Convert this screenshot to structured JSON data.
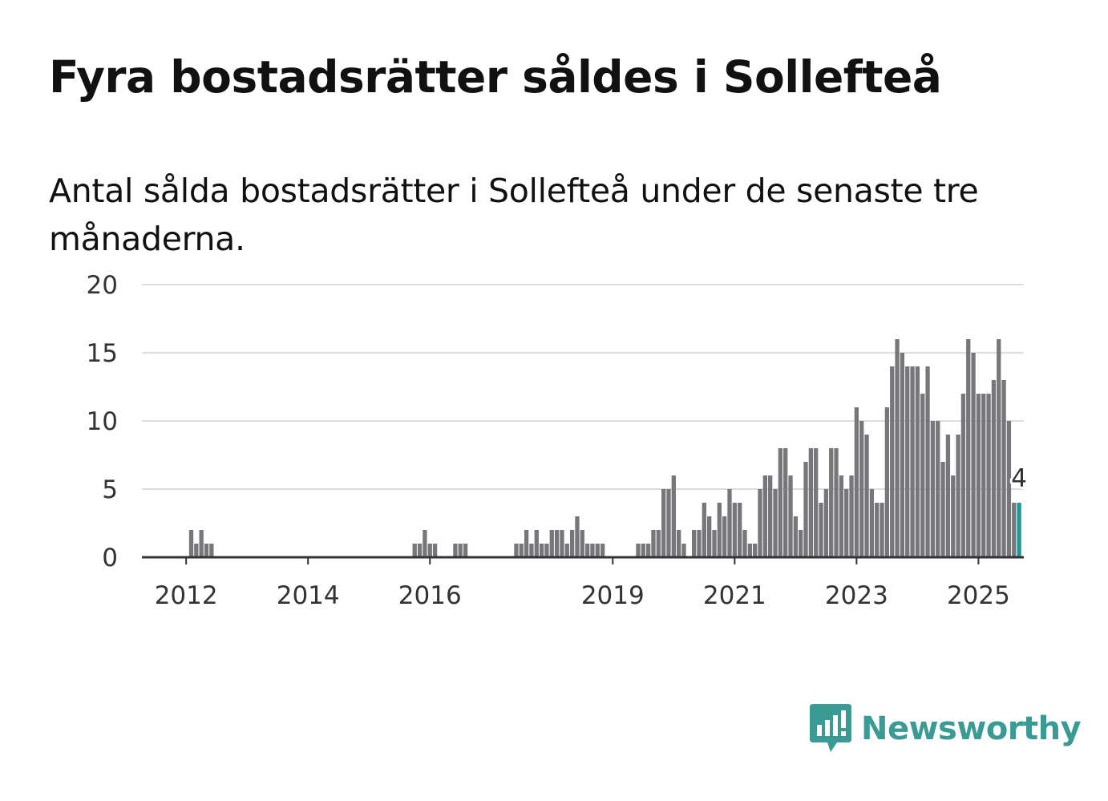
{
  "title": "Fyra bostadsrätter såldes i Sollefteå",
  "subtitle": "Antal sålda bostadsrätter i Sollefteå under de senaste tre månaderna.",
  "brand": {
    "name": "Newsworthy",
    "color": "#3a9b94",
    "icon": "newsworthy-bar-chart-icon"
  },
  "chart_data": {
    "type": "bar",
    "start": "2011-10",
    "ylim": [
      0,
      20
    ],
    "yticks": [
      0,
      5,
      10,
      15,
      20
    ],
    "xticks": [
      "2012",
      "2014",
      "2016",
      "2019",
      "2021",
      "2023",
      "2025"
    ],
    "bar_color": "#77767b",
    "highlight_color": "#1a9a96",
    "grid": true,
    "highlight_label": "4",
    "values": [
      0,
      0,
      0,
      0,
      2,
      1,
      2,
      1,
      1,
      0,
      0,
      0,
      0,
      0,
      0,
      0,
      0,
      0,
      0,
      0,
      0,
      0,
      0,
      0,
      0,
      0,
      0,
      0,
      0,
      0,
      0,
      0,
      0,
      0,
      0,
      0,
      0,
      0,
      0,
      0,
      0,
      0,
      0,
      0,
      0,
      0,
      0,
      0,
      1,
      1,
      2,
      1,
      1,
      0,
      0,
      0,
      1,
      1,
      1,
      0,
      0,
      0,
      0,
      0,
      0,
      0,
      0,
      0,
      1,
      1,
      2,
      1,
      2,
      1,
      1,
      2,
      2,
      2,
      1,
      2,
      3,
      2,
      1,
      1,
      1,
      1,
      0,
      0,
      0,
      0,
      0,
      0,
      1,
      1,
      1,
      2,
      2,
      5,
      5,
      6,
      2,
      1,
      0,
      2,
      2,
      4,
      3,
      2,
      4,
      3,
      5,
      4,
      4,
      2,
      1,
      1,
      5,
      6,
      6,
      5,
      8,
      8,
      6,
      3,
      2,
      7,
      8,
      8,
      4,
      5,
      8,
      8,
      6,
      5,
      6,
      11,
      10,
      9,
      5,
      4,
      4,
      11,
      14,
      16,
      15,
      14,
      14,
      14,
      12,
      14,
      10,
      10,
      7,
      9,
      6,
      9,
      12,
      16,
      15,
      12,
      12,
      12,
      13,
      16,
      13,
      10,
      4,
      4
    ]
  }
}
